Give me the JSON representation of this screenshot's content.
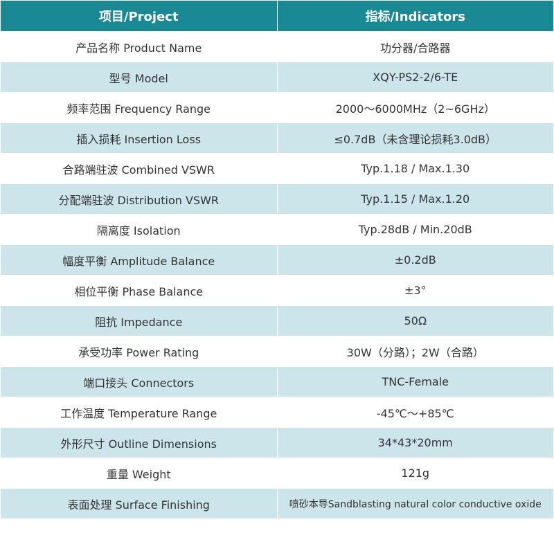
{
  "header": {
    "project": "项目/Project",
    "indicators": "指标/Indicators"
  },
  "colors": {
    "header": "#198993",
    "alt_row": "#cbe5ea"
  },
  "rows": [
    {
      "project": "产品名称 Product Name",
      "value": "功分器/合路器"
    },
    {
      "project": "型号 Model",
      "value": "XQY-PS2-2/6-TE"
    },
    {
      "project": "频率范围 Frequency Range",
      "value": "2000～6000MHz（2~6GHz）"
    },
    {
      "project": "插入损耗 Insertion Loss",
      "value": "≤0.7dB（未含理论损耗3.0dB）"
    },
    {
      "project": "合路端驻波 Combined VSWR",
      "value": "Typ.1.18 / Max.1.30"
    },
    {
      "project": "分配端驻波 Distribution VSWR",
      "value": "Typ.1.15 / Max.1.20"
    },
    {
      "project": "隔离度 Isolation",
      "value": "Typ.28dB / Min.20dB"
    },
    {
      "project": "幅度平衡 Amplitude Balance",
      "value": "±0.2dB"
    },
    {
      "project": "相位平衡 Phase Balance",
      "value": "±3°"
    },
    {
      "project": "阻抗 Impedance",
      "value": "50Ω"
    },
    {
      "project": "承受功率 Power Rating",
      "value": "30W（分路）；2W（合路）"
    },
    {
      "project": "端口接头 Connectors",
      "value": "TNC-Female"
    },
    {
      "project": "工作温度 Temperature Range",
      "value": "-45℃～+85℃"
    },
    {
      "project": "外形尺寸 Outline Dimensions",
      "value": "34*43*20mm"
    },
    {
      "project": "重量 Weight",
      "value": "121g"
    },
    {
      "project": "表面处理 Surface Finishing",
      "value": "喷砂本导Sandblasting natural color conductive oxide"
    }
  ]
}
